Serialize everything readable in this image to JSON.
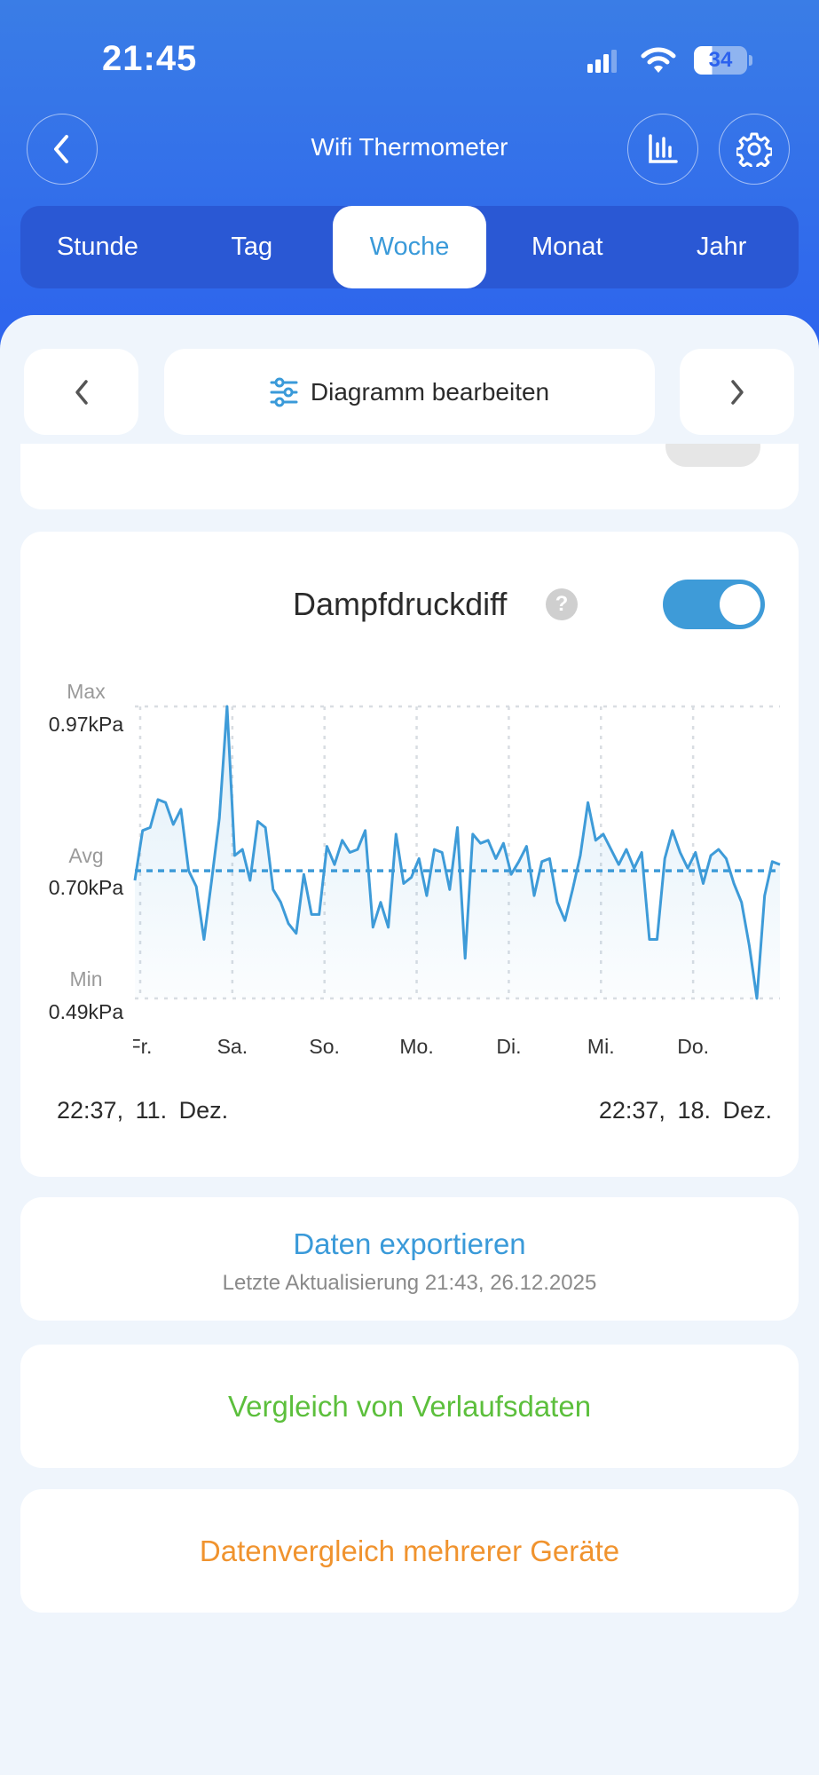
{
  "status_bar": {
    "time": "21:45",
    "battery": "34",
    "icons": [
      "cellular-signal-icon",
      "wifi-icon",
      "battery-icon"
    ]
  },
  "header": {
    "title": "Wifi Thermometer",
    "back_icon": "chevron-left-icon",
    "chart_icon": "bar-chart-icon",
    "settings_icon": "gear-icon"
  },
  "tabs": [
    {
      "label": "Stunde"
    },
    {
      "label": "Tag"
    },
    {
      "label": "Woche",
      "selected": true
    },
    {
      "label": "Monat"
    },
    {
      "label": "Jahr"
    }
  ],
  "nav": {
    "edit_label": "Diagramm bearbeiten",
    "edit_icon": "sliders-icon",
    "prev_icon": "chevron-left-icon",
    "next_icon": "chevron-right-icon"
  },
  "chart_card": {
    "title": "Dampfdruckdiff",
    "help_icon": "question-icon",
    "toggle_on": true,
    "max_label": "Max",
    "max_value": "0.97kPa",
    "avg_label": "Avg",
    "avg_value": "0.70kPa",
    "min_label": "Min",
    "min_value": "0.49kPa",
    "start_time": "22:37,",
    "start_date": "11. Dez.",
    "end_time": "22:37,",
    "end_date": "18. Dez."
  },
  "chart_data": {
    "type": "area",
    "x_start": "22:37, 11. Dez.",
    "x_end": "22:37, 18. Dez.",
    "sampling": "2h",
    "x_tick_labels": [
      "Fr.",
      "Sa.",
      "So.",
      "Mo.",
      "Di.",
      "Mi.",
      "Do."
    ],
    "unit": "kPa",
    "ylim": [
      0.49,
      0.97
    ],
    "avg": 0.7,
    "grid": true,
    "values": [
      0.684,
      0.766,
      0.771,
      0.817,
      0.812,
      0.776,
      0.801,
      0.7,
      0.674,
      0.587,
      0.684,
      0.786,
      0.97,
      0.725,
      0.735,
      0.684,
      0.781,
      0.771,
      0.669,
      0.648,
      0.613,
      0.597,
      0.694,
      0.628,
      0.628,
      0.74,
      0.71,
      0.75,
      0.73,
      0.735,
      0.766,
      0.607,
      0.648,
      0.607,
      0.76,
      0.679,
      0.689,
      0.72,
      0.659,
      0.735,
      0.73,
      0.669,
      0.771,
      0.556,
      0.76,
      0.745,
      0.75,
      0.72,
      0.745,
      0.694,
      0.715,
      0.74,
      0.659,
      0.715,
      0.72,
      0.648,
      0.618,
      0.669,
      0.725,
      0.812,
      0.75,
      0.76,
      0.735,
      0.71,
      0.735,
      0.704,
      0.73,
      0.587,
      0.587,
      0.72,
      0.766,
      0.73,
      0.704,
      0.73,
      0.679,
      0.725,
      0.735,
      0.72,
      0.679,
      0.648,
      0.577,
      0.49,
      0.659,
      0.715,
      0.71
    ],
    "line_color": "#3e9bd8"
  },
  "export": {
    "label": "Daten exportieren",
    "subtitle": "Letzte Aktualisierung 21:43,  26.12.2025",
    "color": "#3a9ad9"
  },
  "history_compare": {
    "label": "Vergleich von Verlaufsdaten",
    "color": "#5cbf3c"
  },
  "device_compare": {
    "label": "Datenvergleich mehrerer Geräte",
    "color": "#f0932e"
  }
}
